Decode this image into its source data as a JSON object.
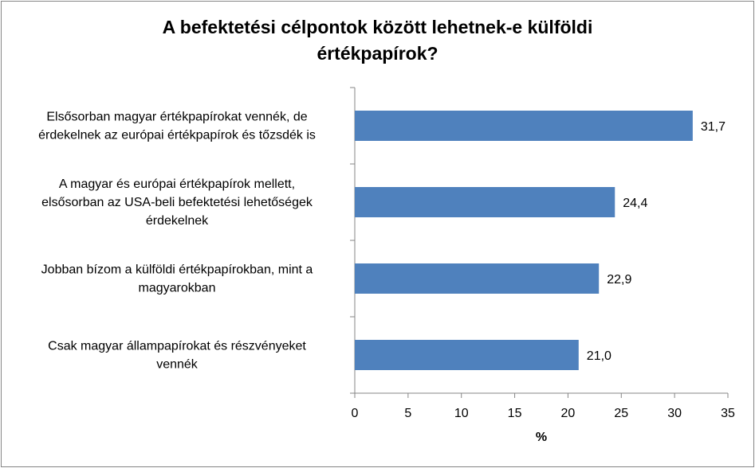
{
  "chart_data": {
    "type": "bar",
    "orientation": "horizontal",
    "title_lines": [
      "A befektetési célpontok között lehetnek-e külföldi",
      "értékpapírok?"
    ],
    "categories": [
      [
        "Elsősorban magyar értékpapírokat vennék, de",
        "érdekelnek az európai értékpapírok és tőzsdék is"
      ],
      [
        "A magyar és európai értékpapírok mellett,",
        "elsősorban az USA-beli befektetési lehetőségek",
        "érdekelnek"
      ],
      [
        "Jobban bízom a külföldi értékpapírokban, mint a",
        "magyarokban"
      ],
      [
        "Csak magyar állampapírokat és részvényeket",
        "vennék"
      ]
    ],
    "values": [
      31.7,
      24.4,
      22.9,
      21.0
    ],
    "data_labels": [
      "31,7",
      "24,4",
      "22,9",
      "21,0"
    ],
    "xlabel": "%",
    "xlim": [
      0,
      35
    ],
    "xticks": [
      "0",
      "5",
      "10",
      "15",
      "20",
      "25",
      "30",
      "35"
    ],
    "grid": false,
    "legend": "none",
    "bar_color": "#4f81bd",
    "axis_color": "#868686"
  }
}
